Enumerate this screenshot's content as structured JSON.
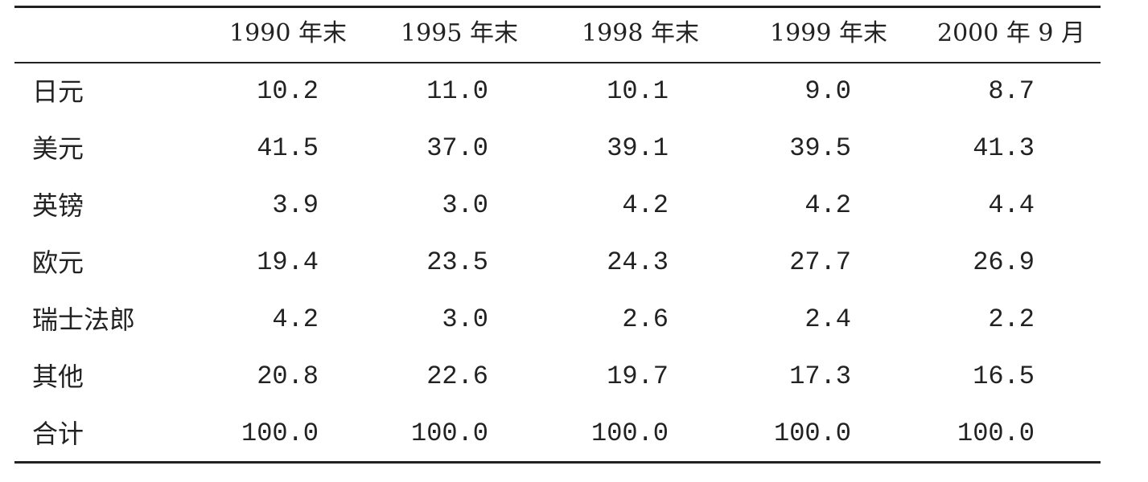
{
  "table": {
    "header": [
      "1990 年末",
      "1995 年末",
      "1998 年末",
      "1999 年末",
      "2000 年 9 月"
    ],
    "rows": [
      [
        "日元",
        "10.2",
        "11.0",
        "10.1",
        "9.0",
        "8.7"
      ],
      [
        "美元",
        "41.5",
        "37.0",
        "39.1",
        "39.5",
        "41.3"
      ],
      [
        "英镑",
        "3.9",
        "3.0",
        "4.2",
        "4.2",
        "4.4"
      ],
      [
        "欧元",
        "19.4",
        "23.5",
        "24.3",
        "27.7",
        "26.9"
      ],
      [
        "瑞士法郎",
        "4.2",
        "3.0",
        "2.6",
        "2.4",
        "2.2"
      ],
      [
        "其他",
        "20.8",
        "22.6",
        "19.7",
        "17.3",
        "16.5"
      ],
      [
        "合计",
        "100.0",
        "100.0",
        "100.0",
        "100.0",
        "100.0"
      ]
    ]
  }
}
